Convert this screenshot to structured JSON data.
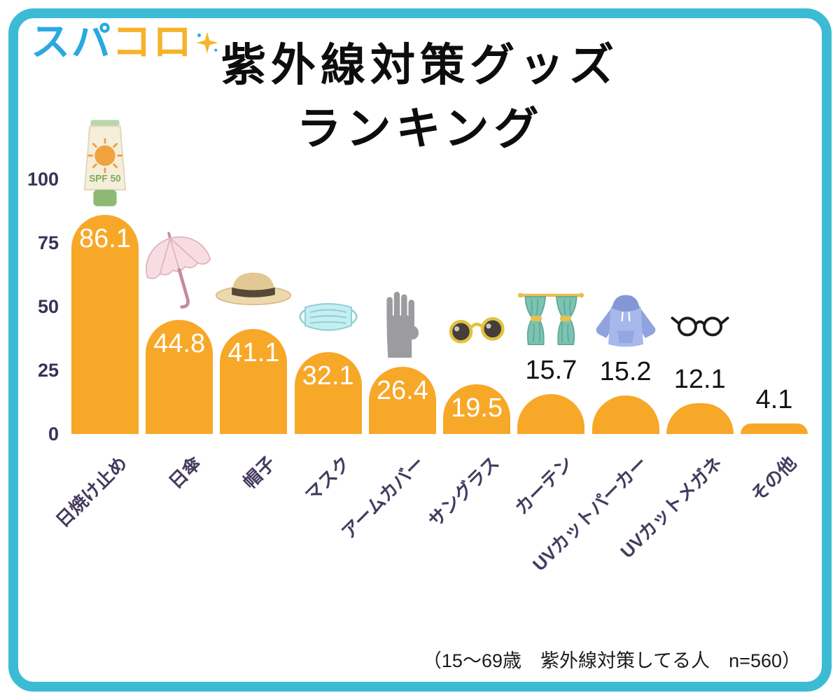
{
  "logo": {
    "text_blue": "スパ",
    "text_yellow": "コロ"
  },
  "title": {
    "line1": "紫外線対策グッズ",
    "line2": "ランキング"
  },
  "footnote": "（15〜69歳　紫外線対策してる人　n=560）",
  "colors": {
    "border": "#3CBCD4",
    "logo_blue": "#2AA9E0",
    "logo_yellow": "#F5B32B"
  },
  "chart_data": {
    "type": "bar",
    "title": "紫外線対策グッズランキング",
    "categories": [
      "日焼け止め",
      "日傘",
      "帽子",
      "マスク",
      "アームカバー",
      "サングラス",
      "カーテン",
      "UVカットパーカー",
      "UVカットメガネ",
      "その他"
    ],
    "values": [
      86.1,
      44.8,
      41.1,
      32.1,
      26.4,
      19.5,
      15.7,
      15.2,
      12.1,
      4.1
    ],
    "icons": [
      "sunscreen-icon",
      "parasol-icon",
      "hat-icon",
      "mask-icon",
      "arm-cover-icon",
      "sunglasses-icon",
      "curtain-icon",
      "hoodie-icon",
      "glasses-icon",
      ""
    ],
    "yticks": [
      0,
      25,
      50,
      75,
      100
    ],
    "ylim": [
      0,
      100
    ],
    "xlabel": "",
    "ylabel": "",
    "grid": false,
    "legend": false,
    "bar_color": "#F7A828",
    "axis_label_color": "#3A3156",
    "category_label_color": "#453A5F",
    "value_label_inside_color": "#FFFFFF",
    "value_label_outside_color": "#141414"
  }
}
